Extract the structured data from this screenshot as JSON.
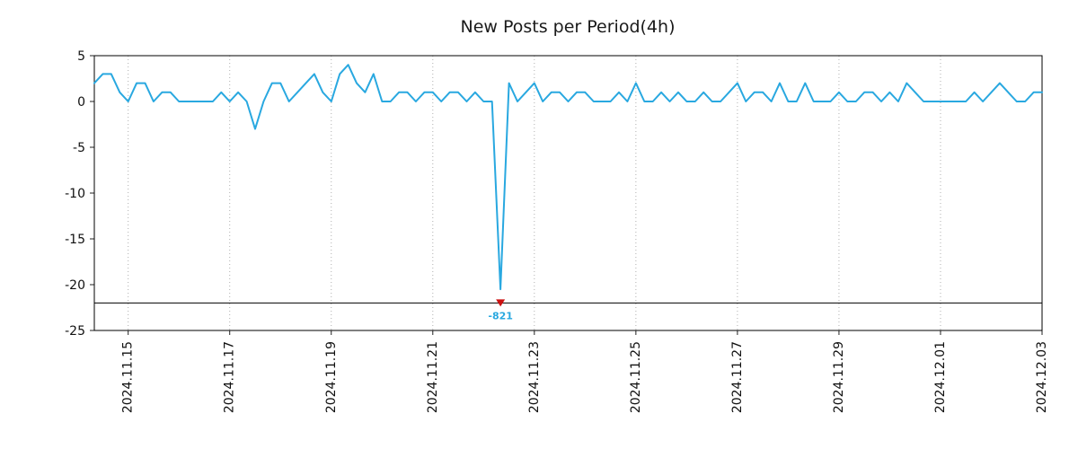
{
  "chart_data": {
    "type": "line",
    "title": "New Posts per Period(4h)",
    "series_color": "#29a8e0",
    "grid_color": "#b0b0b0",
    "axis_color": "#000000",
    "ylim": [
      -25,
      5
    ],
    "yticks": [
      5,
      0,
      -5,
      -10,
      -15,
      -20,
      -25
    ],
    "clip_line_y": -22,
    "xtick_labels": [
      "2024.11.15",
      "2024.11.17",
      "2024.11.19",
      "2024.11.21",
      "2024.11.23",
      "2024.11.25",
      "2024.11.27",
      "2024.11.29",
      "2024.12.01",
      "2024.12.03"
    ],
    "xtick_indices": [
      4,
      16,
      28,
      40,
      52,
      64,
      76,
      88,
      100,
      112
    ],
    "x_step_hours": 4,
    "annotation": {
      "label": "-821",
      "value": -821,
      "index": 48,
      "marker": "triangle-down",
      "marker_color": "#cc1111"
    },
    "values": [
      2,
      3,
      3,
      1,
      0,
      2,
      2,
      0,
      1,
      1,
      0,
      0,
      0,
      0,
      0,
      1,
      0,
      1,
      0,
      -3,
      0,
      2,
      2,
      0,
      1,
      2,
      3,
      1,
      0,
      3,
      4,
      2,
      1,
      3,
      0,
      0,
      1,
      1,
      0,
      1,
      1,
      0,
      1,
      1,
      0,
      1,
      0,
      0,
      -821,
      2,
      0,
      1,
      2,
      0,
      1,
      1,
      0,
      1,
      1,
      0,
      0,
      0,
      1,
      0,
      2,
      0,
      0,
      1,
      0,
      1,
      0,
      0,
      1,
      0,
      0,
      1,
      2,
      0,
      1,
      1,
      0,
      2,
      0,
      0,
      2,
      0,
      0,
      0,
      1,
      0,
      0,
      1,
      1,
      0,
      1,
      0,
      2,
      1,
      0,
      0,
      0,
      0,
      0,
      0,
      1,
      0,
      1,
      2,
      1,
      0,
      0,
      1,
      1
    ]
  }
}
